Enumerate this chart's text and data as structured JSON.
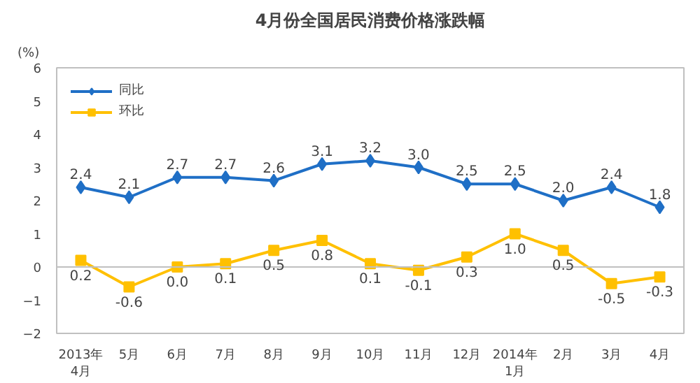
{
  "chart_data": {
    "type": "line",
    "title": "4月份全国居民消费价格涨跌幅",
    "ylabel": "(%)",
    "categories": [
      "2013年\n4月",
      "5月",
      "6月",
      "7月",
      "8月",
      "9月",
      "10月",
      "11月",
      "12月",
      "2014年\n1月",
      "2月",
      "3月",
      "4月"
    ],
    "series": [
      {
        "name": "同比",
        "color": "#1f6fc6",
        "marker": "diamond",
        "values": [
          2.4,
          2.1,
          2.7,
          2.7,
          2.6,
          3.1,
          3.2,
          3.0,
          2.5,
          2.5,
          2.0,
          2.4,
          1.8
        ],
        "value_labels": [
          "2.4",
          "2.1",
          "2.7",
          "2.7",
          "2.6",
          "3.1",
          "3.2",
          "3.0",
          "2.5",
          "2.5",
          "2.0",
          "2.4",
          "1.8"
        ]
      },
      {
        "name": "环比",
        "color": "#ffc000",
        "marker": "square",
        "values": [
          0.2,
          -0.6,
          0.0,
          0.1,
          0.5,
          0.8,
          0.1,
          -0.1,
          0.3,
          1.0,
          0.5,
          -0.5,
          -0.3
        ],
        "value_labels": [
          "0.2",
          "-0.6",
          "0.0",
          "0.1",
          "0.5",
          "0.8",
          "0.1",
          "-0.1",
          "0.3",
          "1.0",
          "0.5",
          "-0.5",
          "-0.3"
        ]
      }
    ],
    "ylim": [
      -2,
      6
    ],
    "yticks": [
      -2,
      -1,
      0,
      1,
      2,
      3,
      4,
      5,
      6
    ],
    "grid": false,
    "legend": "top left",
    "ref_lines": [
      {
        "axis": "y",
        "value": 0,
        "color": "#c0c0c0"
      }
    ]
  }
}
